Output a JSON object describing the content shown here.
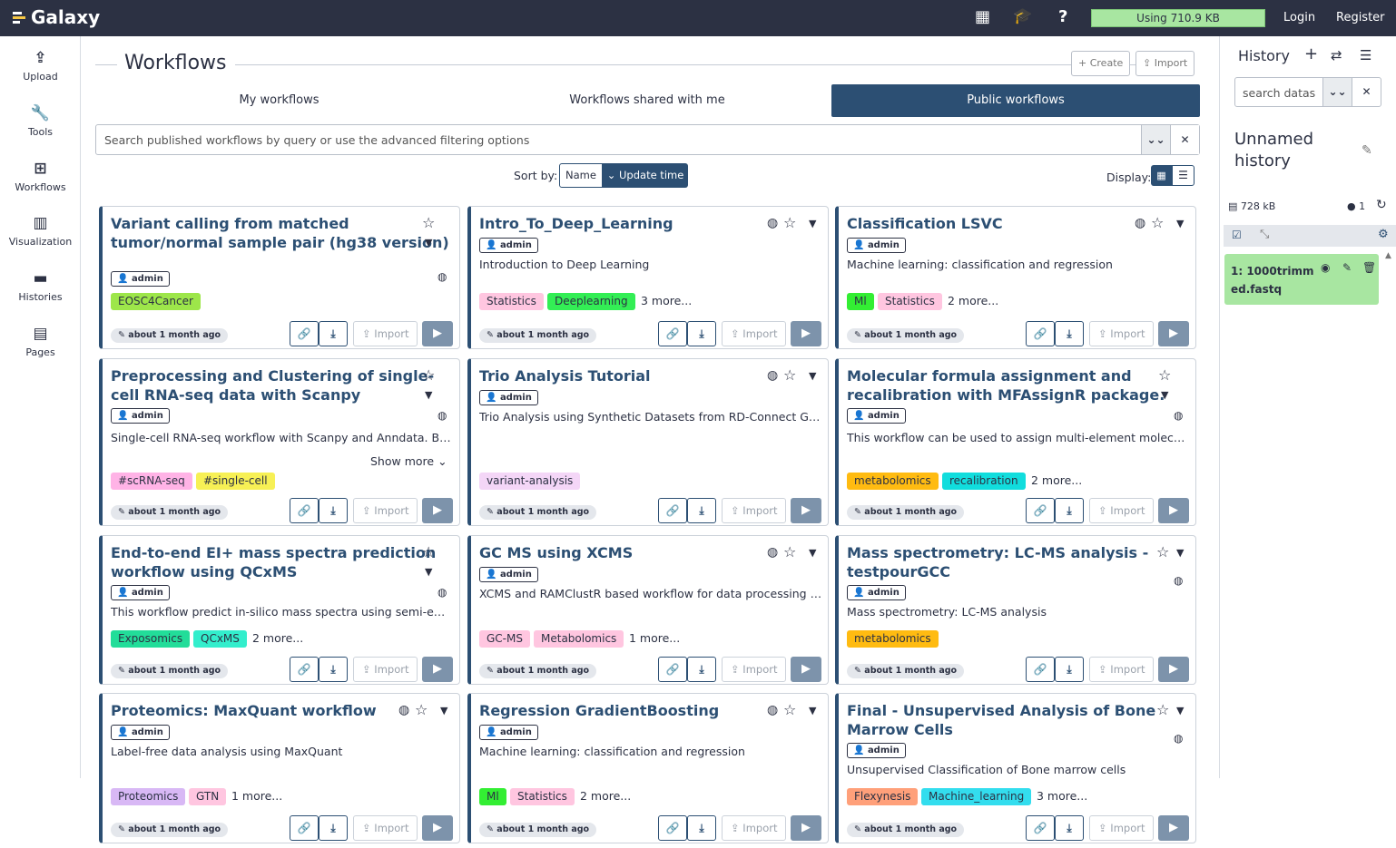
{
  "topbar": {
    "brand": "Galaxy",
    "apps_icon": "grid-icon",
    "help_icon": "question-icon",
    "quota": "Using 710.9 KB",
    "login": "Login",
    "register": "Register"
  },
  "sidebar": [
    {
      "label": "Upload",
      "icon": "upload-icon"
    },
    {
      "label": "Tools",
      "icon": "wrench-icon"
    },
    {
      "label": "Workflows",
      "icon": "sitemap-icon"
    },
    {
      "label": "Visualization",
      "icon": "chart-icon"
    },
    {
      "label": "Histories",
      "icon": "hdd-icon"
    },
    {
      "label": "Pages",
      "icon": "file-icon"
    }
  ],
  "page": {
    "title": "Workflows",
    "create": "Create",
    "import": "Import",
    "tabs": [
      "My workflows",
      "Workflows shared with me",
      "Public workflows"
    ],
    "search_placeholder": "Search published workflows by query or use the advanced filtering options",
    "sort_label": "Sort by:",
    "sort_name": "Name",
    "sort_update": "Update time",
    "display_label": "Display:"
  },
  "card_labels": {
    "import": "Import",
    "show_more": "Show more"
  },
  "cards": [
    {
      "title1": "Variant calling from matched",
      "title2": "tumor/normal sample pair (hg38 version)",
      "owner": "admin",
      "desc": "",
      "tags": [
        {
          "t": "EOSC4Cancer",
          "c": "#9de64a"
        }
      ],
      "more": "",
      "time": "about 1 month ago"
    },
    {
      "title1": "Intro_To_Deep_Learning",
      "title2": "",
      "owner": "admin",
      "desc": "Introduction to Deep Learning",
      "tags": [
        {
          "t": "Statistics",
          "c": "#ffc6e0"
        },
        {
          "t": "Deeplearning",
          "c": "#33ee55"
        }
      ],
      "more": "3 more...",
      "time": "about 1 month ago"
    },
    {
      "title1": "Classification LSVC",
      "title2": "",
      "owner": "admin",
      "desc": "Machine learning: classification and regression",
      "tags": [
        {
          "t": "Ml",
          "c": "#33ee33"
        },
        {
          "t": "Statistics",
          "c": "#ffc6e0"
        }
      ],
      "more": "2 more...",
      "time": "about 1 month ago"
    },
    {
      "title1": "Preprocessing and Clustering of single-",
      "title2": "cell RNA-seq data with Scanpy",
      "owner": "admin",
      "desc": "Single-cell RNA-seq workflow with Scanpy and Anndata. Base...",
      "tags": [
        {
          "t": "#scRNA-seq",
          "c": "#ffb3e6"
        },
        {
          "t": "#single-cell",
          "c": "#f7f055"
        }
      ],
      "more": "",
      "time": "about 1 month ago"
    },
    {
      "title1": "Trio Analysis Tutorial",
      "title2": "",
      "owner": "admin",
      "desc": "Trio Analysis using Synthetic Datasets from RD-Connect GPAP",
      "tags": [
        {
          "t": "variant-analysis",
          "c": "#f4d6f7"
        }
      ],
      "more": "",
      "time": "about 1 month ago"
    },
    {
      "title1": "Molecular formula assignment and",
      "title2": "recalibration with MFAssignR package.",
      "owner": "admin",
      "desc": "This workflow can be used to assign multi-element molecular...",
      "tags": [
        {
          "t": "metabolomics",
          "c": "#ffbb11"
        },
        {
          "t": "recalibration",
          "c": "#11dddd"
        }
      ],
      "more": "2 more...",
      "time": "about 1 month ago"
    },
    {
      "title1": "End-to-end EI+ mass spectra prediction",
      "title2": "workflow using QCxMS",
      "owner": "admin",
      "desc": "This workflow predict in-silico mass spectra using semi-empi...",
      "tags": [
        {
          "t": "Exposomics",
          "c": "#22dd99"
        },
        {
          "t": "QCxMS",
          "c": "#33eecc"
        }
      ],
      "more": "2 more...",
      "time": "about 1 month ago"
    },
    {
      "title1": "GC MS using XCMS",
      "title2": "",
      "owner": "admin",
      "desc": "XCMS and RAMClustR based workflow for data processing an...",
      "tags": [
        {
          "t": "GC-MS",
          "c": "#ffc6e0"
        },
        {
          "t": "Metabolomics",
          "c": "#ffc6e0"
        }
      ],
      "more": "1 more...",
      "time": "about 1 month ago"
    },
    {
      "title1": "Mass spectrometry: LC-MS analysis -",
      "title2": "testpourGCC",
      "owner": "admin",
      "desc": "Mass spectrometry: LC-MS analysis",
      "tags": [
        {
          "t": "metabolomics",
          "c": "#ffbb11"
        }
      ],
      "more": "",
      "time": "about 1 month ago"
    },
    {
      "title1": "Proteomics: MaxQuant workflow",
      "title2": "",
      "owner": "admin",
      "desc": "Label-free data analysis using MaxQuant",
      "tags": [
        {
          "t": "Proteomics",
          "c": "#d8b8f5"
        },
        {
          "t": "GTN",
          "c": "#ffc6e0"
        }
      ],
      "more": "1 more...",
      "time": "about 1 month ago"
    },
    {
      "title1": "Regression GradientBoosting",
      "title2": "",
      "owner": "admin",
      "desc": "Machine learning: classification and regression",
      "tags": [
        {
          "t": "Ml",
          "c": "#33ee33"
        },
        {
          "t": "Statistics",
          "c": "#ffc6e0"
        }
      ],
      "more": "2 more...",
      "time": "about 1 month ago"
    },
    {
      "title1": "Final - Unsupervised Analysis of Bone",
      "title2": "Marrow Cells",
      "owner": "admin",
      "desc": "Unsupervised Classification of Bone marrow cells",
      "tags": [
        {
          "t": "Flexynesis",
          "c": "#ffa07a"
        },
        {
          "t": "Machine_learning",
          "c": "#33ddee"
        }
      ],
      "more": "3 more...",
      "time": "about 1 month ago"
    }
  ],
  "history": {
    "title": "History",
    "search_placeholder": "search datasets",
    "name1": "Unnamed",
    "name2": "history",
    "size": "728 kB",
    "count": "1",
    "item1": "1: 1000trimm",
    "item2": "ed.fastq"
  }
}
